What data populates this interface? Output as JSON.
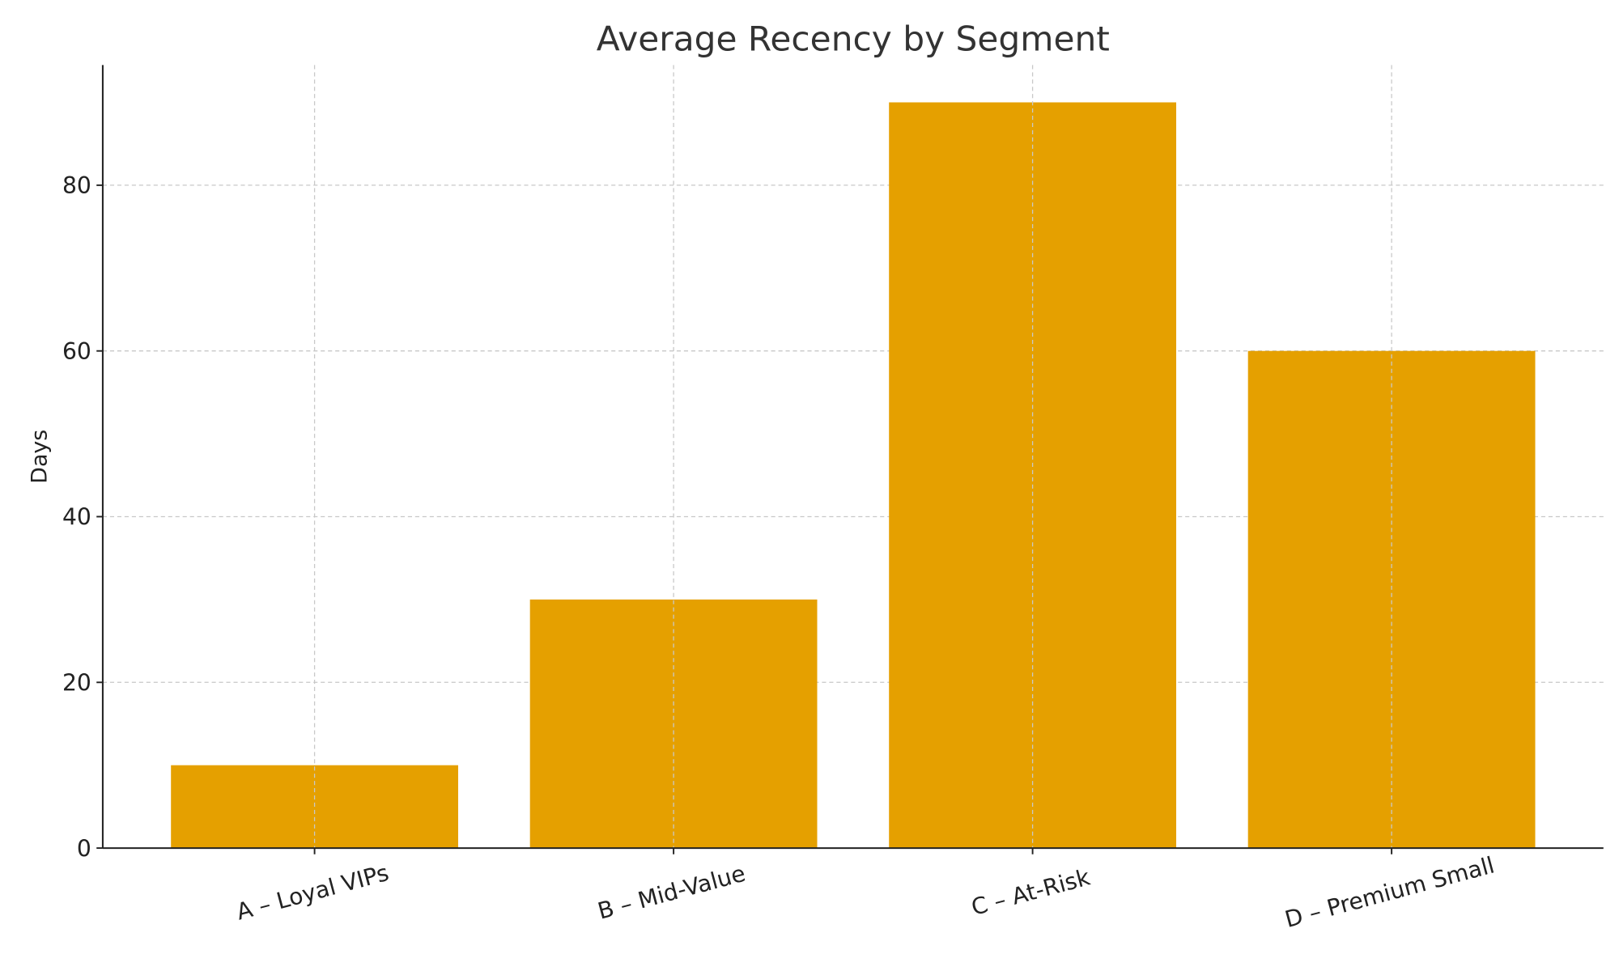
{
  "chart_data": {
    "type": "bar",
    "title": "Average Recency by Segment",
    "xlabel": "",
    "ylabel": "Days",
    "categories": [
      "A – Loyal VIPs",
      "B – Mid-Value",
      "C – At-Risk",
      "D – Premium Small"
    ],
    "values": [
      10,
      30,
      90,
      60
    ],
    "ylim": [
      0,
      94.5
    ],
    "yticks": [
      0,
      20,
      40,
      60,
      80
    ],
    "grid": true,
    "bar_color": "#E5A000",
    "grid_color": "#c8c8c8",
    "text_color": "#333333"
  }
}
